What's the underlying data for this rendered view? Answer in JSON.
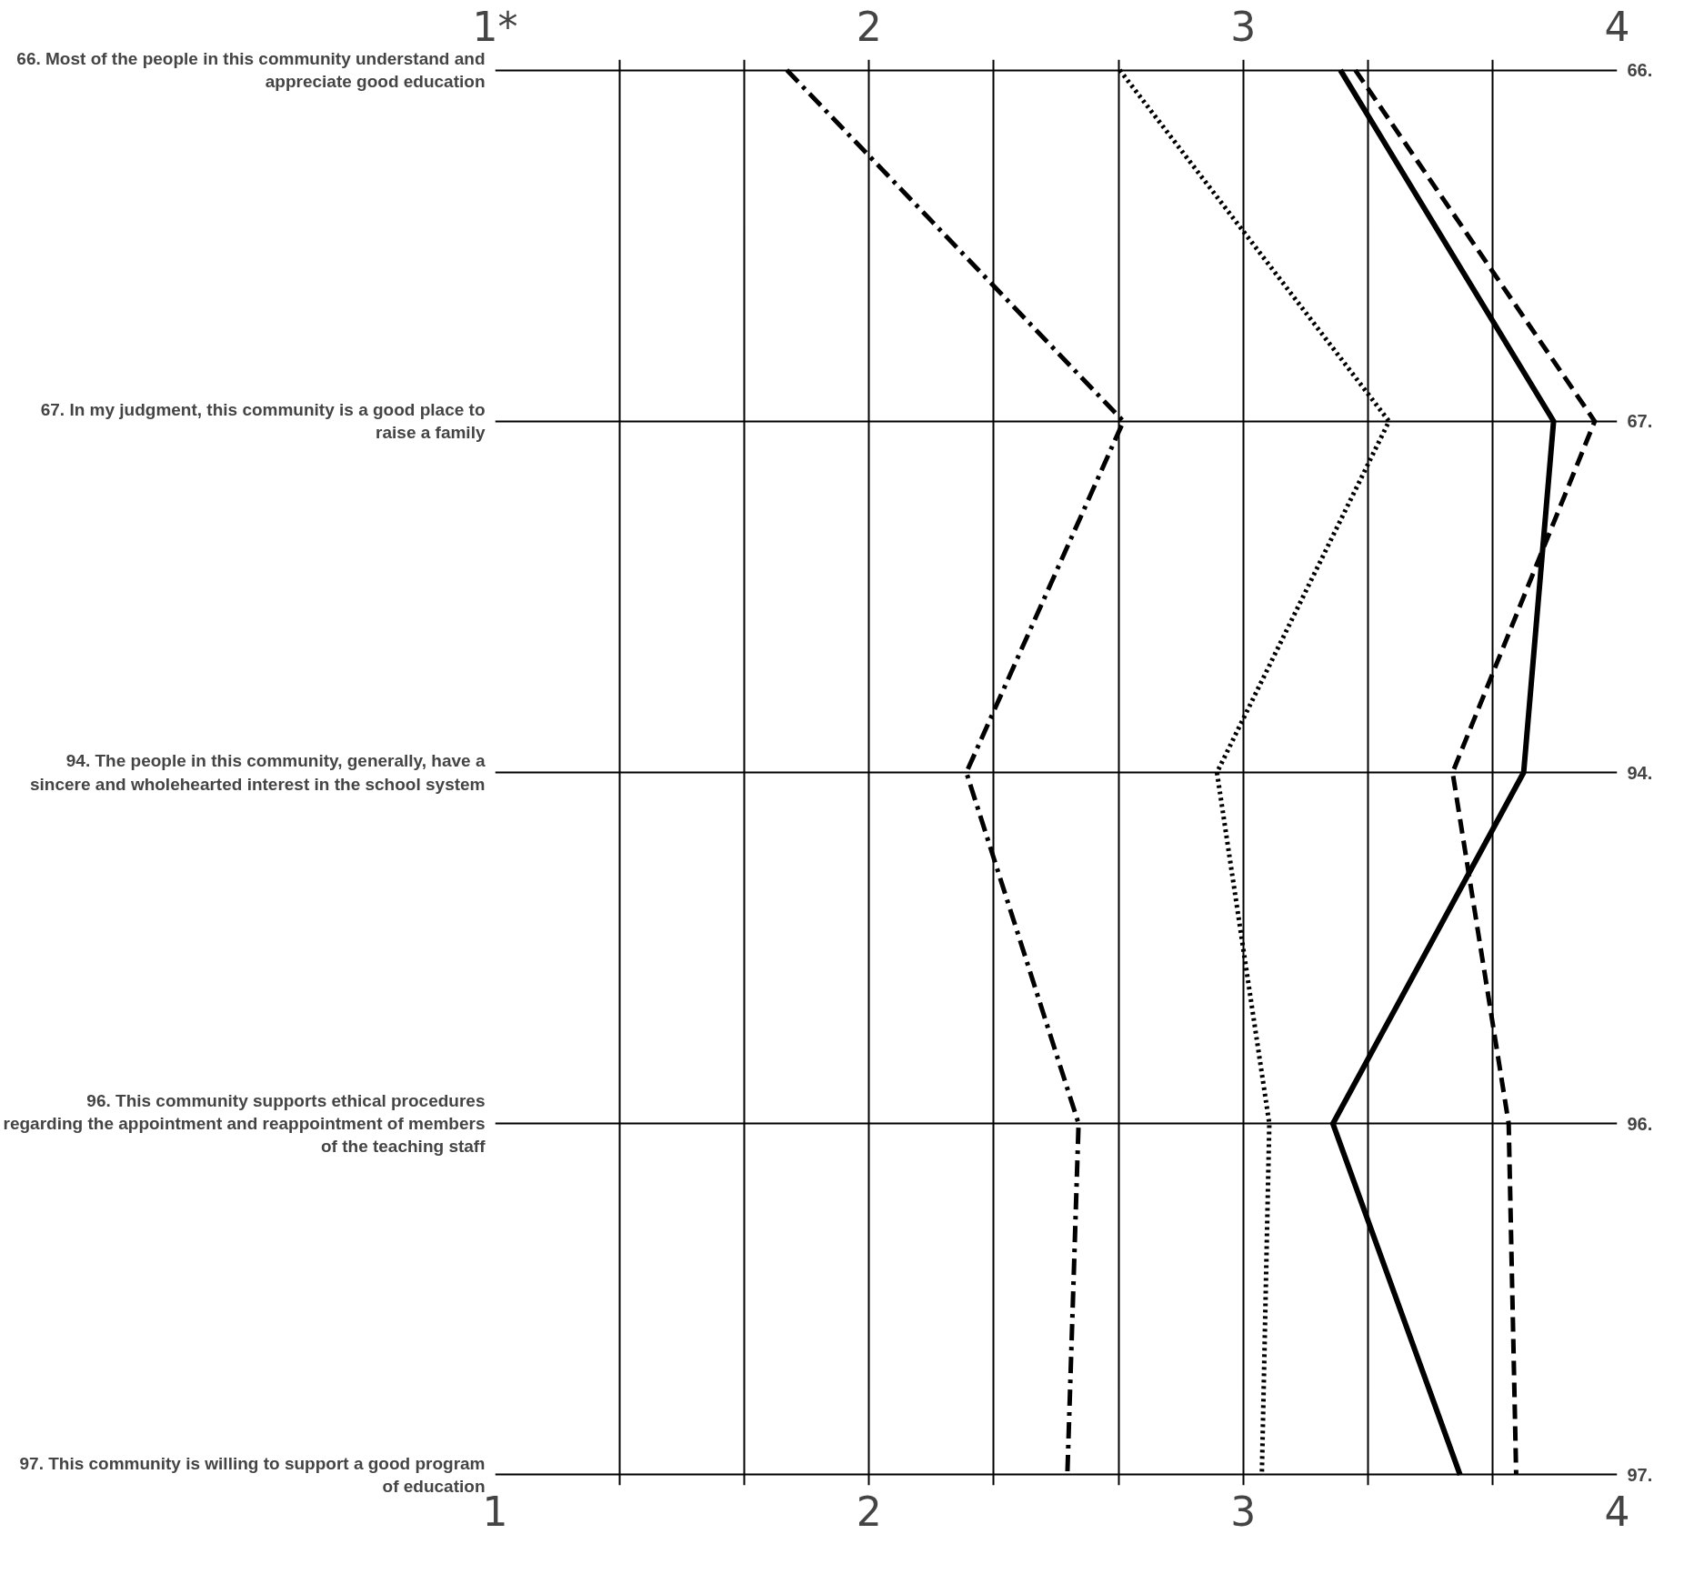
{
  "chart_data": {
    "type": "line",
    "orientation": "horizontal",
    "categories": [
      "66. Most of the people in this community understand and appreciate good education",
      "67. In my judgment, this community is a good place to raise a family",
      "94. The people in this community, generally, have a sincere and wholehearted interest in the school system",
      "96. This community supports ethical procedures regarding the appointment and reappointment of members of the teaching staff",
      "97. This community is willing to support a good program of education"
    ],
    "y2_categories": [
      "66.",
      "67.",
      "94.",
      "96.",
      "97."
    ],
    "series": [
      {
        "color": "#000000",
        "line_style": "dashdot",
        "values": [
          1.78,
          2.68,
          2.26,
          2.56,
          2.53
        ]
      },
      {
        "color": "#000000",
        "line_style": "dotted",
        "values": [
          2.67,
          3.39,
          2.93,
          3.07,
          3.05
        ]
      },
      {
        "color": "#000000",
        "line_style": "solid",
        "values": [
          3.26,
          3.83,
          3.75,
          3.24,
          3.58
        ]
      },
      {
        "color": "#000000",
        "line_style": "dashed",
        "values": [
          3.3,
          3.94,
          3.56,
          3.71,
          3.73
        ]
      }
    ],
    "xlim": [
      1,
      4
    ],
    "xticks": [
      1,
      {
        "value": 1.333,
        "label": null
      },
      {
        "value": 1.667,
        "label": null
      },
      2,
      {
        "value": 2.333,
        "label": null
      },
      {
        "value": 2.667,
        "label": null
      },
      3,
      {
        "value": 3.333,
        "label": null
      },
      {
        "value": 3.667,
        "label": null
      },
      4
    ],
    "x2lim": [
      1,
      4
    ],
    "x2ticks": [
      {
        "value": 1,
        "label": "1*"
      },
      2,
      3,
      4
    ],
    "grid": true,
    "marker": "none"
  }
}
